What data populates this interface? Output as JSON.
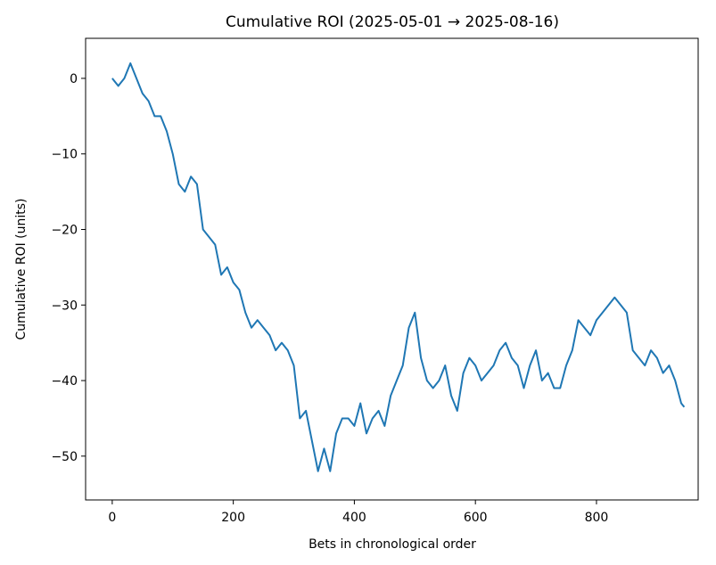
{
  "chart_data": {
    "type": "line",
    "title": "Cumulative ROI (2025-05-01 → 2025-08-16)",
    "x_label": "Bets in chronological order",
    "y_label": "Cumulative ROI (units)",
    "x": [
      0,
      10,
      20,
      30,
      40,
      50,
      60,
      70,
      80,
      90,
      100,
      110,
      120,
      130,
      140,
      150,
      160,
      170,
      180,
      190,
      200,
      210,
      220,
      230,
      240,
      250,
      260,
      270,
      280,
      290,
      300,
      310,
      320,
      330,
      340,
      350,
      360,
      370,
      380,
      390,
      400,
      410,
      420,
      430,
      440,
      450,
      460,
      470,
      480,
      490,
      500,
      510,
      520,
      530,
      540,
      550,
      560,
      570,
      580,
      590,
      600,
      610,
      620,
      630,
      640,
      650,
      660,
      670,
      680,
      690,
      700,
      710,
      720,
      730,
      740,
      750,
      760,
      770,
      780,
      790,
      800,
      810,
      820,
      830,
      840,
      850,
      860,
      870,
      880,
      890,
      900,
      910,
      920,
      930,
      940,
      945
    ],
    "series": [
      {
        "name": "Cumulative ROI",
        "color": "#1f77b4",
        "values": [
          0,
          -1,
          0,
          2,
          0,
          -2,
          -3,
          -5,
          -5,
          -7,
          -10,
          -14,
          -15,
          -13,
          -14,
          -20,
          -21,
          -22,
          -26,
          -25,
          -27,
          -28,
          -31,
          -33,
          -32,
          -33,
          -34,
          -36,
          -35,
          -36,
          -38,
          -45,
          -44,
          -48,
          -52,
          -49,
          -52,
          -47,
          -45,
          -45,
          -46,
          -43,
          -47,
          -45,
          -44,
          -46,
          -42,
          -40,
          -38,
          -33,
          -31,
          -37,
          -40,
          -41,
          -40,
          -38,
          -42,
          -44,
          -39,
          -37,
          -38,
          -40,
          -39,
          -38,
          -36,
          -35,
          -37,
          -38,
          -41,
          -38,
          -36,
          -40,
          -39,
          -41,
          -41,
          -38,
          -36,
          -32,
          -33,
          -34,
          -32,
          -31,
          -30,
          -29,
          -30,
          -31,
          -36,
          -37,
          -38,
          -36,
          -37,
          -39,
          -38,
          -40,
          -43,
          -43.5
        ]
      }
    ],
    "xlim": [
      -44,
      968
    ],
    "ylim": [
      -55.8,
      5.3
    ],
    "xticks": [
      0,
      200,
      400,
      600,
      800
    ],
    "yticks": [
      {
        "value": -50,
        "label": "−50"
      },
      {
        "value": -40,
        "label": "−40"
      },
      {
        "value": -30,
        "label": "−30"
      },
      {
        "value": -20,
        "label": "−20"
      },
      {
        "value": -10,
        "label": "−10"
      },
      0
    ]
  }
}
